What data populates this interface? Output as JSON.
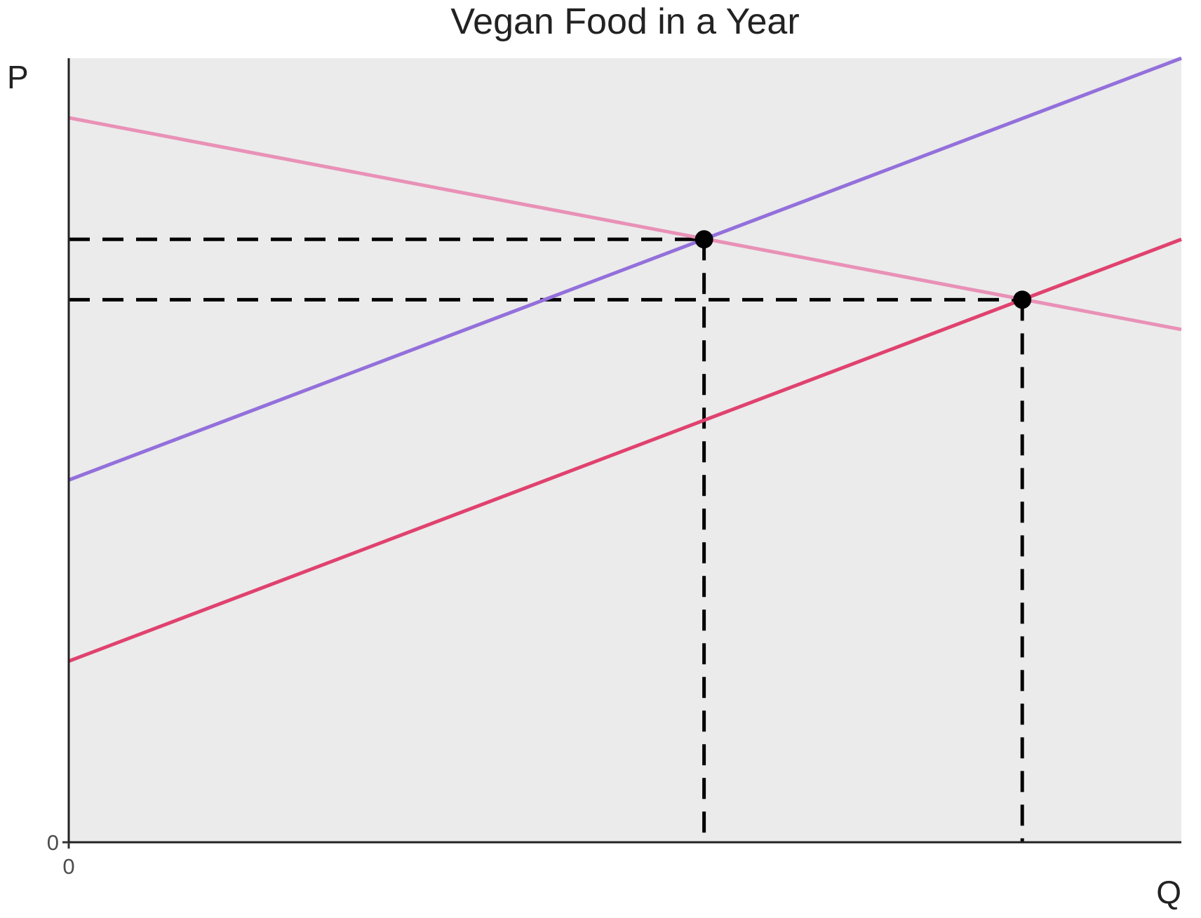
{
  "chart_data": {
    "type": "line",
    "title": "Vegan Food in a Year",
    "xlabel": "Q",
    "ylabel": "P",
    "xlim": [
      0,
      10
    ],
    "ylim": [
      0,
      10
    ],
    "x_ticks": [
      0
    ],
    "y_ticks": [
      0
    ],
    "grid": false,
    "legend": "none",
    "panel_color": "#ebebeb",
    "series": [
      {
        "color": "#e991b7",
        "style": "solid",
        "x": [
          0,
          10
        ],
        "y": [
          9.24,
          6.54
        ]
      },
      {
        "color": "#9370db",
        "style": "solid",
        "x": [
          0,
          10
        ],
        "y": [
          4.62,
          10.0
        ]
      },
      {
        "color": "#e0426f",
        "style": "solid",
        "x": [
          0,
          10
        ],
        "y": [
          2.31,
          7.69
        ]
      }
    ],
    "points": [
      {
        "x": 5.71,
        "y": 7.69
      },
      {
        "x": 8.57,
        "y": 6.92
      }
    ],
    "guides": [
      {
        "x": 5.71,
        "y": 7.69
      },
      {
        "x": 8.57,
        "y": 6.92
      }
    ]
  }
}
